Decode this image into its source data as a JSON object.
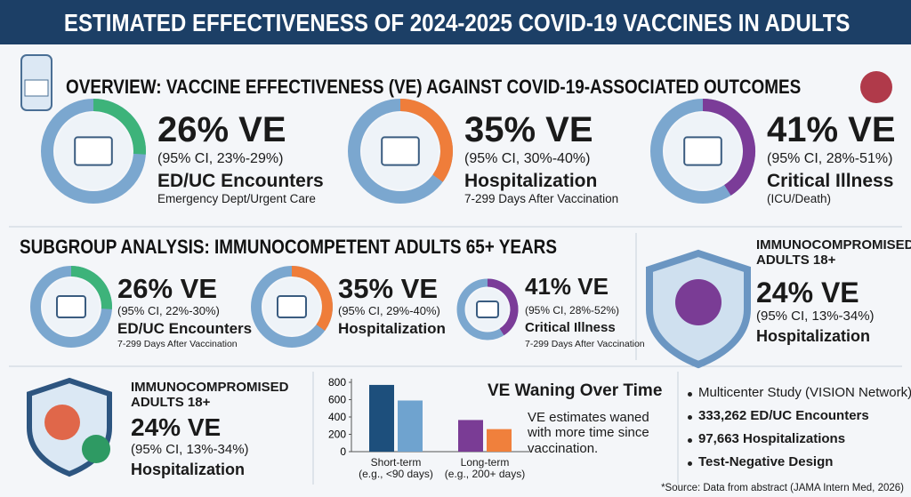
{
  "title": "ESTIMATED EFFECTIVENESS OF 2024-2025 COVID-19 VACCINES IN ADULTS",
  "overview": {
    "heading": "OVERVIEW: VACCINE EFFECTIVENESS (VE) AGAINST COVID-19-ASSOCIATED OUTCOMES",
    "items": [
      {
        "ve": 26,
        "ve_label": "26% VE",
        "ci": "(95% CI, 23%-29%)",
        "outcome": "ED/UC Encounters",
        "note": "Emergency Dept/Urgent Care",
        "color": "#3db37a"
      },
      {
        "ve": 35,
        "ve_label": "35% VE",
        "ci": "(95% CI, 30%-40%)",
        "outcome": "Hospitalization",
        "note": "7-299 Days After Vaccination",
        "color": "#ef7d3a"
      },
      {
        "ve": 41,
        "ve_label": "41% VE",
        "ci": "(95% CI, 28%-51%)",
        "outcome": "Critical Illness",
        "note": "(ICU/Death)",
        "color": "#7b3c98"
      }
    ]
  },
  "subgroup": {
    "heading": "SUBGROUP ANALYSIS: IMMUNOCOMPETENT ADULTS 65+ YEARS",
    "items": [
      {
        "ve": 26,
        "ve_label": "26% VE",
        "ci": "(95% CI, 22%-30%)",
        "outcome": "ED/UC Encounters",
        "note": "7-299 Days After Vaccination",
        "color": "#3db37a"
      },
      {
        "ve": 35,
        "ve_label": "35% VE",
        "ci": "(95% CI, 29%-40%)",
        "outcome": "Hospitalization",
        "color": "#ef7d3a"
      },
      {
        "ve": 41,
        "ve_label": "41% VE",
        "ci": "(95% CI, 28%-52%)",
        "outcome": "Critical Illness",
        "note": "7-299 Days After Vaccination",
        "color": "#7b3c98"
      }
    ]
  },
  "immunocompromised_right": {
    "heading": "IMMUNOCOMPROMISED ADULTS 18+",
    "ve_label": "24% VE",
    "ci": "(95% CI, 13%-34%)",
    "outcome": "Hospitalization"
  },
  "immunocompromised_left": {
    "heading": "IMMUNOCOMPROMISED ADULTS 18+",
    "ve_label": "24% VE",
    "ci": "(95% CI, 13%-34%)",
    "outcome": "Hospitalization"
  },
  "chart_data": {
    "type": "bar",
    "title": "VE Waning Over Time",
    "categories": [
      "Short-term\n(e.g., <90 days)",
      "Long-term\n(e.g., 200+ days)"
    ],
    "series": [
      {
        "colors": [
          "#1d4f7c",
          "#7a3c95"
        ],
        "values": [
          770,
          365
        ]
      },
      {
        "colors": [
          "#6fa3cf",
          "#f0803c"
        ],
        "values": [
          590,
          260
        ]
      }
    ],
    "ylim": [
      0,
      800
    ],
    "yticks": [
      0,
      200,
      400,
      600,
      800
    ]
  },
  "chart_note": "VE estimates waned with more time since vaccination.",
  "study": [
    "Multicenter Study (VISION Network)",
    "333,262 ED/UC Encounters",
    "97,663 Hospitalizations",
    "Test-Negative Design"
  ],
  "source": "*Source: Data from abstract (JAMA Intern Med, 2026)"
}
